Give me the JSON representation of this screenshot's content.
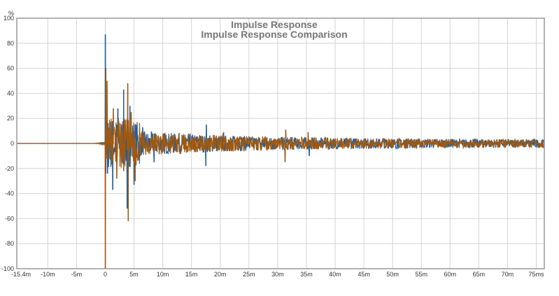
{
  "chart_data": {
    "type": "line",
    "title": "Impulse Response",
    "subtitle": "Impulse Response Comparison",
    "ylabel": "%",
    "xlabel": "",
    "xlim": [
      -15.4,
      76.4
    ],
    "ylim": [
      -100,
      100
    ],
    "grid": true,
    "x_ticks": [
      {
        "v": -15.4,
        "label": "-15.4m"
      },
      {
        "v": -10,
        "label": "-10m"
      },
      {
        "v": -5,
        "label": "-5m"
      },
      {
        "v": 0,
        "label": "0"
      },
      {
        "v": 5,
        "label": "5m"
      },
      {
        "v": 10,
        "label": "10m"
      },
      {
        "v": 15,
        "label": "15m"
      },
      {
        "v": 20,
        "label": "20m"
      },
      {
        "v": 25,
        "label": "25m"
      },
      {
        "v": 30,
        "label": "30m"
      },
      {
        "v": 35,
        "label": "35m"
      },
      {
        "v": 40,
        "label": "40m"
      },
      {
        "v": 45,
        "label": "45m"
      },
      {
        "v": 50,
        "label": "50m"
      },
      {
        "v": 55,
        "label": "55m"
      },
      {
        "v": 60,
        "label": "60m"
      },
      {
        "v": 65,
        "label": "65m"
      },
      {
        "v": 70,
        "label": "70m"
      },
      {
        "v": 75,
        "label": "75ms"
      }
    ],
    "y_ticks": [
      {
        "v": 100,
        "label": "100"
      },
      {
        "v": 80,
        "label": "80"
      },
      {
        "v": 60,
        "label": "60"
      },
      {
        "v": 40,
        "label": "40"
      },
      {
        "v": 20,
        "label": "20"
      },
      {
        "v": 0,
        "label": "0"
      },
      {
        "v": -20,
        "label": "-20"
      },
      {
        "v": -40,
        "label": "-40"
      },
      {
        "v": -60,
        "label": "-60"
      },
      {
        "v": -80,
        "label": "-80"
      },
      {
        "v": -100,
        "label": "-100"
      }
    ],
    "series": [
      {
        "name": "blue",
        "color": "#1f5f9c",
        "peaks": [
          [
            0,
            87
          ],
          [
            0.1,
            -24
          ],
          [
            0.4,
            -24
          ],
          [
            1.3,
            -37
          ],
          [
            2.2,
            28
          ],
          [
            3.2,
            43
          ],
          [
            3.8,
            -52
          ],
          [
            4.3,
            30
          ],
          [
            5.0,
            -33
          ],
          [
            6.5,
            13
          ],
          [
            8.5,
            -15
          ],
          [
            17.5,
            -18
          ],
          [
            17.6,
            15
          ],
          [
            20.5,
            8
          ],
          [
            35.5,
            -10
          ]
        ],
        "noise_amp": 9,
        "decay_ms": 22,
        "seed": 7
      },
      {
        "name": "brown",
        "color": "#a0580f",
        "peaks": [
          [
            0,
            -100
          ],
          [
            0.1,
            60
          ],
          [
            0.3,
            50
          ],
          [
            1.4,
            28
          ],
          [
            2.0,
            -28
          ],
          [
            3.2,
            -22
          ],
          [
            3.9,
            48
          ],
          [
            4.0,
            -62
          ],
          [
            4.5,
            25
          ],
          [
            5.2,
            -30
          ],
          [
            20.6,
            9
          ],
          [
            31.3,
            -15
          ],
          [
            31.4,
            11
          ],
          [
            35.3,
            9
          ]
        ],
        "noise_amp": 9,
        "decay_ms": 22,
        "seed": 13
      }
    ]
  }
}
